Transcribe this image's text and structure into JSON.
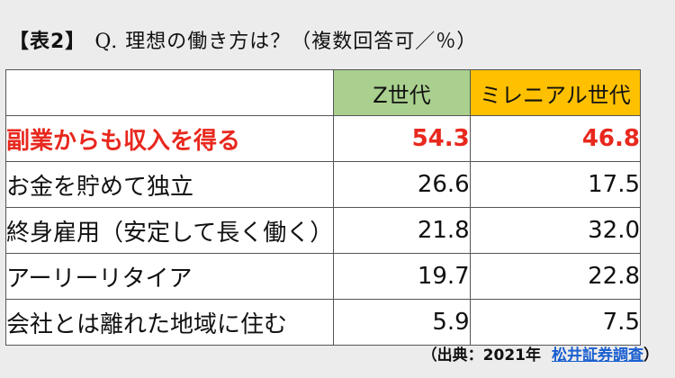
{
  "chart_data": {
    "type": "table",
    "title_tag": "【表2】",
    "title": "Q. 理想の働き方は？（複数回答可／％）",
    "columns": [
      "",
      "Z世代",
      "ミレニアル世代"
    ],
    "rows": [
      {
        "label": "副業からも収入を得る",
        "values": [
          "54.3",
          "46.8"
        ],
        "highlight": true
      },
      {
        "label": "お金を貯めて独立",
        "values": [
          "26.6",
          "17.5"
        ]
      },
      {
        "label": "終身雇用（安定して長く働く）",
        "values": [
          "21.8",
          "32.0"
        ]
      },
      {
        "label": "アーリーリタイア",
        "values": [
          "19.7",
          "22.8"
        ]
      },
      {
        "label": "会社とは離れた地域に住む",
        "values": [
          "5.9",
          "7.5"
        ]
      }
    ],
    "source_prefix": "（出典：2021年",
    "source_link": "松井証券調査",
    "source_suffix": "）",
    "colors": {
      "z_header": "#a9d08e",
      "millennial_header": "#ffc000",
      "highlight_text": "#e8281e",
      "link": "#1a5fd0",
      "background": "#ececec"
    }
  }
}
